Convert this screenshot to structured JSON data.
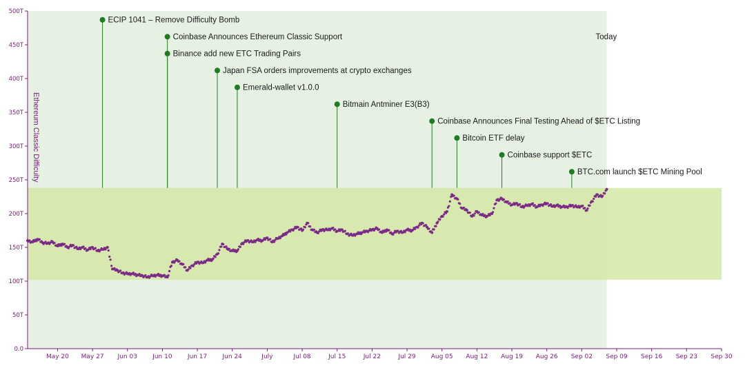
{
  "chart_data": {
    "type": "scatter",
    "ylabel": "Ethereum Classic Difficulty",
    "x_domain": [
      "2018-05-14",
      "2018-09-30"
    ],
    "y_domain": [
      0,
      500
    ],
    "y_unit": "T",
    "y_ticks": [
      {
        "value": 0,
        "label": "0.0"
      },
      {
        "value": 50,
        "label": "50T"
      },
      {
        "value": 100,
        "label": "100T"
      },
      {
        "value": 150,
        "label": "150T"
      },
      {
        "value": 200,
        "label": "200T"
      },
      {
        "value": 250,
        "label": "250T"
      },
      {
        "value": 300,
        "label": "300T"
      },
      {
        "value": 350,
        "label": "350T"
      },
      {
        "value": 400,
        "label": "400T"
      },
      {
        "value": 450,
        "label": "450T"
      },
      {
        "value": 500,
        "label": "500T"
      }
    ],
    "x_ticks": [
      {
        "date": "2018-05-20",
        "label": "May 20"
      },
      {
        "date": "2018-05-27",
        "label": "May 27"
      },
      {
        "date": "2018-06-03",
        "label": "Jun 03"
      },
      {
        "date": "2018-06-10",
        "label": "Jun 10"
      },
      {
        "date": "2018-06-17",
        "label": "Jun 17"
      },
      {
        "date": "2018-06-24",
        "label": "Jun 24"
      },
      {
        "date": "2018-07-01",
        "label": "July"
      },
      {
        "date": "2018-07-08",
        "label": "Jul 08"
      },
      {
        "date": "2018-07-15",
        "label": "Jul 15"
      },
      {
        "date": "2018-07-22",
        "label": "Jul 22"
      },
      {
        "date": "2018-07-29",
        "label": "Jul 29"
      },
      {
        "date": "2018-08-05",
        "label": "Aug 05"
      },
      {
        "date": "2018-08-12",
        "label": "Aug 12"
      },
      {
        "date": "2018-08-19",
        "label": "Aug 19"
      },
      {
        "date": "2018-08-26",
        "label": "Aug 26"
      },
      {
        "date": "2018-09-02",
        "label": "Sep 02"
      },
      {
        "date": "2018-09-09",
        "label": "Sep 09"
      },
      {
        "date": "2018-09-16",
        "label": "Sep 16"
      },
      {
        "date": "2018-09-23",
        "label": "Sep 23"
      },
      {
        "date": "2018-09-30",
        "label": "Sep 30"
      }
    ],
    "today": {
      "date": "2018-09-07",
      "label": "Today"
    },
    "range_band": {
      "y_min": 102,
      "y_max": 238
    },
    "series": [
      {
        "color": "#7b2a86",
        "points": [
          [
            "2018-05-14",
            160
          ],
          [
            "2018-05-15",
            158
          ],
          [
            "2018-05-16",
            162
          ],
          [
            "2018-05-17",
            157
          ],
          [
            "2018-05-18",
            156
          ],
          [
            "2018-05-19",
            158
          ],
          [
            "2018-05-20",
            152
          ],
          [
            "2018-05-21",
            155
          ],
          [
            "2018-05-22",
            150
          ],
          [
            "2018-05-23",
            153
          ],
          [
            "2018-05-24",
            148
          ],
          [
            "2018-05-25",
            150
          ],
          [
            "2018-05-26",
            146
          ],
          [
            "2018-05-27",
            150
          ],
          [
            "2018-05-28",
            145
          ],
          [
            "2018-05-29",
            147
          ],
          [
            "2018-05-30",
            150
          ],
          [
            "2018-05-31",
            118
          ],
          [
            "2018-06-01",
            116
          ],
          [
            "2018-06-02",
            112
          ],
          [
            "2018-06-03",
            111
          ],
          [
            "2018-06-04",
            111
          ],
          [
            "2018-06-05",
            109
          ],
          [
            "2018-06-06",
            108
          ],
          [
            "2018-06-07",
            106
          ],
          [
            "2018-06-08",
            108
          ],
          [
            "2018-06-09",
            109
          ],
          [
            "2018-06-10",
            108
          ],
          [
            "2018-06-11",
            106
          ],
          [
            "2018-06-12",
            128
          ],
          [
            "2018-06-13",
            131
          ],
          [
            "2018-06-14",
            125
          ],
          [
            "2018-06-15",
            116
          ],
          [
            "2018-06-16",
            123
          ],
          [
            "2018-06-17",
            128
          ],
          [
            "2018-06-18",
            127
          ],
          [
            "2018-06-19",
            131
          ],
          [
            "2018-06-20",
            132
          ],
          [
            "2018-06-21",
            140
          ],
          [
            "2018-06-22",
            155
          ],
          [
            "2018-06-23",
            148
          ],
          [
            "2018-06-24",
            145
          ],
          [
            "2018-06-25",
            145
          ],
          [
            "2018-06-26",
            156
          ],
          [
            "2018-06-27",
            160
          ],
          [
            "2018-06-28",
            158
          ],
          [
            "2018-06-29",
            161
          ],
          [
            "2018-06-30",
            160
          ],
          [
            "2018-07-01",
            164
          ],
          [
            "2018-07-02",
            158
          ],
          [
            "2018-07-03",
            163
          ],
          [
            "2018-07-04",
            167
          ],
          [
            "2018-07-05",
            172
          ],
          [
            "2018-07-06",
            176
          ],
          [
            "2018-07-07",
            180
          ],
          [
            "2018-07-08",
            175
          ],
          [
            "2018-07-09",
            186
          ],
          [
            "2018-07-10",
            176
          ],
          [
            "2018-07-11",
            172
          ],
          [
            "2018-07-12",
            176
          ],
          [
            "2018-07-13",
            176
          ],
          [
            "2018-07-14",
            178
          ],
          [
            "2018-07-15",
            174
          ],
          [
            "2018-07-16",
            176
          ],
          [
            "2018-07-17",
            170
          ],
          [
            "2018-07-18",
            168
          ],
          [
            "2018-07-19",
            170
          ],
          [
            "2018-07-20",
            172
          ],
          [
            "2018-07-21",
            174
          ],
          [
            "2018-07-22",
            176
          ],
          [
            "2018-07-23",
            178
          ],
          [
            "2018-07-24",
            172
          ],
          [
            "2018-07-25",
            176
          ],
          [
            "2018-07-26",
            170
          ],
          [
            "2018-07-27",
            174
          ],
          [
            "2018-07-28",
            172
          ],
          [
            "2018-07-29",
            176
          ],
          [
            "2018-07-30",
            175
          ],
          [
            "2018-07-31",
            180
          ],
          [
            "2018-08-01",
            186
          ],
          [
            "2018-08-02",
            180
          ],
          [
            "2018-08-03",
            172
          ],
          [
            "2018-08-04",
            186
          ],
          [
            "2018-08-05",
            196
          ],
          [
            "2018-08-06",
            203
          ],
          [
            "2018-08-07",
            228
          ],
          [
            "2018-08-08",
            222
          ],
          [
            "2018-08-09",
            208
          ],
          [
            "2018-08-10",
            205
          ],
          [
            "2018-08-11",
            196
          ],
          [
            "2018-08-12",
            203
          ],
          [
            "2018-08-13",
            198
          ],
          [
            "2018-08-14",
            196
          ],
          [
            "2018-08-15",
            200
          ],
          [
            "2018-08-16",
            220
          ],
          [
            "2018-08-17",
            222
          ],
          [
            "2018-08-18",
            217
          ],
          [
            "2018-08-19",
            213
          ],
          [
            "2018-08-20",
            215
          ],
          [
            "2018-08-21",
            210
          ],
          [
            "2018-08-22",
            212
          ],
          [
            "2018-08-23",
            214
          ],
          [
            "2018-08-24",
            210
          ],
          [
            "2018-08-25",
            213
          ],
          [
            "2018-08-26",
            215
          ],
          [
            "2018-08-27",
            211
          ],
          [
            "2018-08-28",
            212
          ],
          [
            "2018-08-29",
            210
          ],
          [
            "2018-08-30",
            210
          ],
          [
            "2018-08-31",
            212
          ],
          [
            "2018-09-01",
            210
          ],
          [
            "2018-09-02",
            211
          ],
          [
            "2018-09-03",
            205
          ],
          [
            "2018-09-04",
            218
          ],
          [
            "2018-09-05",
            228
          ],
          [
            "2018-09-06",
            225
          ],
          [
            "2018-09-07",
            236
          ]
        ]
      }
    ],
    "events": [
      {
        "date": "2018-05-29",
        "y": 487,
        "label": "ECIP 1041 – Remove Difficulty Bomb"
      },
      {
        "date": "2018-06-11",
        "y": 462,
        "label": "Coinbase Announces Ethereum Classic Support"
      },
      {
        "date": "2018-06-11",
        "y": 437,
        "label": "Binance add new ETC Trading Pairs"
      },
      {
        "date": "2018-06-21",
        "y": 412,
        "label": "Japan FSA orders improvements at crypto exchanges"
      },
      {
        "date": "2018-06-25",
        "y": 387,
        "label": "Emerald-wallet v1.0.0"
      },
      {
        "date": "2018-07-15",
        "y": 362,
        "label": "Bitmain Antminer E3(B3)"
      },
      {
        "date": "2018-08-03",
        "y": 337,
        "label": "Coinbase Announces Final Testing Ahead of $ETC Listing"
      },
      {
        "date": "2018-08-08",
        "y": 312,
        "label": "Bitcoin ETF delay"
      },
      {
        "date": "2018-08-17",
        "y": 287,
        "label": "Coinbase support $ETC"
      },
      {
        "date": "2018-08-31",
        "y": 262,
        "label": "BTC.com launch $ETC Mining Pool"
      }
    ],
    "colors": {
      "shaded_region": "#e6f1e3",
      "band": "#d4e8a6",
      "series": "#7b2a86",
      "event_marker": "#1e7d1e",
      "axis": "#7a1a7a"
    },
    "grid": false
  }
}
